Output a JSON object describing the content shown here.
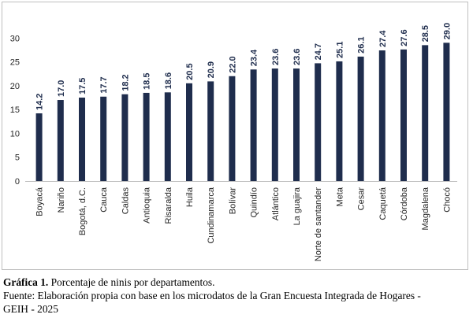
{
  "chart_data": {
    "type": "bar",
    "categories": [
      "Boyacá",
      "Nariño",
      "Bogotá, d.C.",
      "Cauca",
      "Caldas",
      "Antioquia",
      "Risaralda",
      "Huila",
      "Cundinamarca",
      "Bolívar",
      "Quindío",
      "Atlántico",
      "La guajira",
      "Norte de santander",
      "Meta",
      "Cesar",
      "Caquetá",
      "Córdoba",
      "Magdalena",
      "Chocó"
    ],
    "values": [
      14.2,
      17.0,
      17.5,
      17.7,
      18.2,
      18.5,
      18.6,
      20.5,
      20.9,
      22.0,
      23.4,
      23.6,
      23.6,
      24.7,
      25.1,
      26.1,
      27.4,
      27.6,
      28.5,
      29.0
    ],
    "value_labels": [
      "14.2",
      "17.0",
      "17.5",
      "17.7",
      "18.2",
      "18.5",
      "18.6",
      "20.5",
      "20.9",
      "22.0",
      "23.4",
      "23.6",
      "23.6",
      "24.7",
      "25.1",
      "26.1",
      "27.4",
      "27.6",
      "28.5",
      "29.0"
    ],
    "yticks": [
      0,
      5,
      10,
      15,
      20,
      25,
      30
    ],
    "ylim": [
      0,
      35
    ],
    "grid": false,
    "bar_color": "#1f2d4d"
  },
  "caption": {
    "label": "Gráfica 1.",
    "title": " Porcentaje de ninis por departamentos.",
    "source_line1": "Fuente: Elaboración propia con base en los microdatos de la Gran Encuesta Integrada de Hogares -",
    "source_line2": "GEIH - 2025"
  }
}
